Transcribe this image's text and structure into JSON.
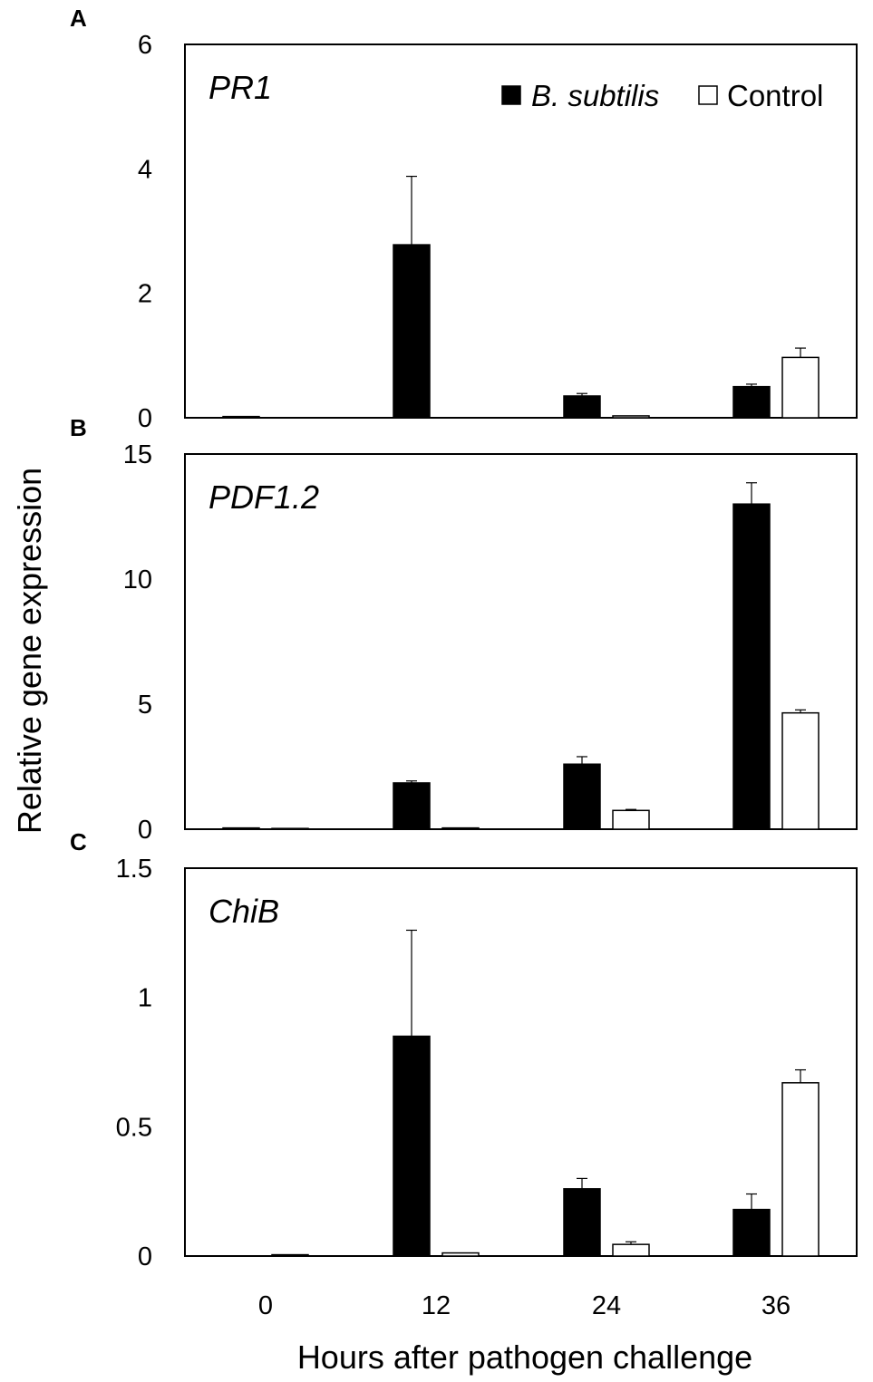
{
  "chart_data": [
    {
      "type": "bar",
      "panel_label": "A",
      "gene_label": "PR1",
      "categories": [
        "0",
        "12",
        "24",
        "36"
      ],
      "series": [
        {
          "name": "B. subtilis",
          "color": "#000000",
          "values": [
            0.02,
            2.78,
            0.35,
            0.5
          ],
          "errors": [
            0.0,
            1.1,
            0.04,
            0.04
          ]
        },
        {
          "name": "Control",
          "color": "#ffffff",
          "values": [
            0.0,
            0.0,
            0.03,
            0.97
          ],
          "errors": [
            0.0,
            0.0,
            0.0,
            0.15
          ]
        }
      ],
      "ylim": [
        0,
        6
      ],
      "yticks": [
        "0",
        "2",
        "4",
        "6"
      ],
      "ytick_values": [
        0,
        2,
        4,
        6
      ]
    },
    {
      "type": "bar",
      "panel_label": "B",
      "gene_label": "PDF1.2",
      "categories": [
        "0",
        "12",
        "24",
        "36"
      ],
      "series": [
        {
          "name": "B. subtilis",
          "color": "#000000",
          "values": [
            0.05,
            1.85,
            2.6,
            13.0
          ],
          "errors": [
            0.0,
            0.08,
            0.3,
            0.85
          ]
        },
        {
          "name": "Control",
          "color": "#ffffff",
          "values": [
            0.03,
            0.05,
            0.75,
            4.65
          ],
          "errors": [
            0.0,
            0.0,
            0.04,
            0.12
          ]
        }
      ],
      "ylim": [
        0,
        15
      ],
      "yticks": [
        "0",
        "5",
        "10",
        "15"
      ],
      "ytick_values": [
        0,
        5,
        10,
        15
      ]
    },
    {
      "type": "bar",
      "panel_label": "C",
      "gene_label": "ChiB",
      "categories": [
        "0",
        "12",
        "24",
        "36"
      ],
      "series": [
        {
          "name": "B. subtilis",
          "color": "#000000",
          "values": [
            0.0,
            0.85,
            0.26,
            0.18
          ],
          "errors": [
            0.0,
            0.41,
            0.04,
            0.06
          ]
        },
        {
          "name": "Control",
          "color": "#ffffff",
          "values": [
            0.005,
            0.012,
            0.045,
            0.67
          ],
          "errors": [
            0.0,
            0.0,
            0.01,
            0.05
          ]
        }
      ],
      "ylim": [
        0,
        1.5
      ],
      "yticks": [
        "0",
        "0.5",
        "1",
        "1.5"
      ],
      "ytick_values": [
        0,
        0.5,
        1,
        1.5
      ]
    }
  ],
  "legend": {
    "placement": "top-right",
    "items": [
      {
        "label": "B. subtilis",
        "italic": true,
        "color": "#000000"
      },
      {
        "label": "Control",
        "italic": false,
        "color": "#ffffff"
      }
    ]
  },
  "ylabel": "Relative gene expression",
  "xlabel": "Hours after pathogen challenge",
  "xticks": [
    "0",
    "12",
    "24",
    "36"
  ]
}
